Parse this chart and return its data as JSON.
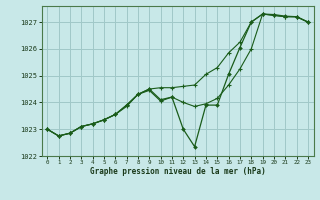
{
  "xlabel": "Graphe pression niveau de la mer (hPa)",
  "background_color": "#c8e8e8",
  "grid_color": "#a0c8c8",
  "line_color": "#1a5c1a",
  "ylim": [
    1022.0,
    1027.6
  ],
  "xlim": [
    -0.5,
    23.5
  ],
  "yticks": [
    1022,
    1023,
    1024,
    1025,
    1026,
    1027
  ],
  "xticks": [
    0,
    1,
    2,
    3,
    4,
    5,
    6,
    7,
    8,
    9,
    10,
    11,
    12,
    13,
    14,
    15,
    16,
    17,
    18,
    19,
    20,
    21,
    22,
    23
  ],
  "s1": [
    1023.0,
    1022.75,
    1022.85,
    1023.1,
    1023.2,
    1023.35,
    1023.55,
    1023.85,
    1024.3,
    1024.45,
    1024.05,
    1024.2,
    1024.0,
    1023.85,
    1023.95,
    1024.15,
    1024.65,
    1025.25,
    1026.0,
    1027.3,
    1027.25,
    1027.2,
    1027.2,
    1027.0
  ],
  "s2": [
    1023.0,
    1022.75,
    1022.85,
    1023.1,
    1023.2,
    1023.35,
    1023.55,
    1023.9,
    1024.3,
    1024.5,
    1024.55,
    1024.55,
    1024.6,
    1024.65,
    1025.05,
    1025.3,
    1025.85,
    1026.25,
    1027.0,
    1027.3,
    1027.25,
    1027.2,
    1027.2,
    1027.0
  ],
  "s3": [
    1023.0,
    1022.75,
    1022.85,
    1023.1,
    1023.2,
    1023.35,
    1023.55,
    1023.9,
    1024.3,
    1024.5,
    1024.1,
    1024.2,
    1023.0,
    1022.35,
    1023.9,
    1023.9,
    1025.05,
    1026.05,
    1027.0,
    1027.3,
    1027.28,
    1027.22,
    1027.2,
    1027.0
  ]
}
